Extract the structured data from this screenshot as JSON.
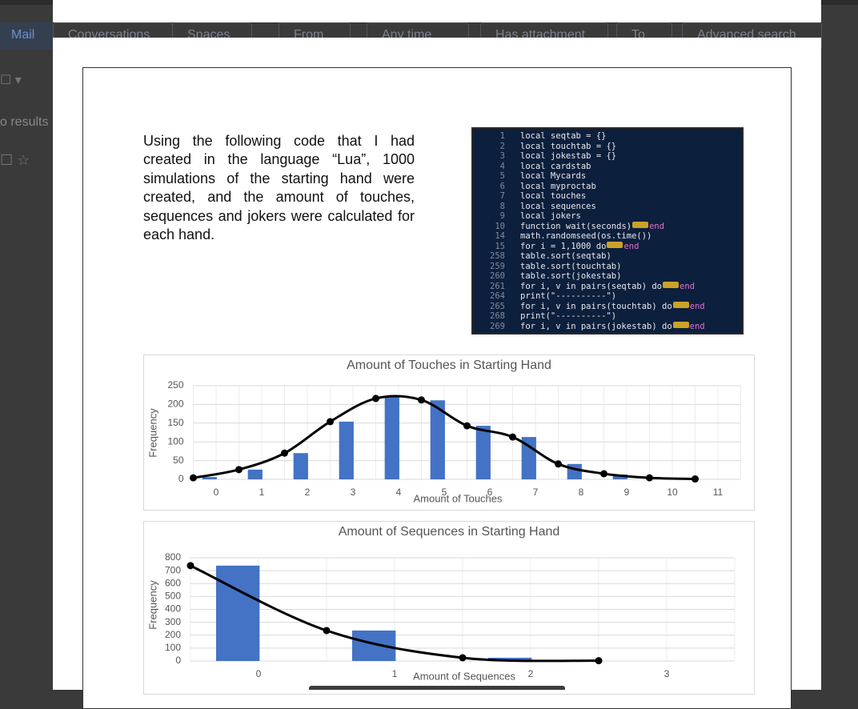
{
  "gmail": {
    "nav": "Mail",
    "chips": [
      "Conversations",
      "Spaces",
      "From",
      "Any time",
      "Has attachment",
      "To",
      "Advanced search"
    ],
    "results": "o results"
  },
  "document": {
    "paragraph": "Using the following code that I had created in the language “Lua”, 1000 simulations of the starting hand were created, and the amount of touches, sequences and jokers were calculated for each hand.",
    "code": {
      "lines": [
        {
          "n": "1",
          "code": "local seqtab = {}"
        },
        {
          "n": "2",
          "code": "local touchtab = {}"
        },
        {
          "n": "3",
          "code": "local jokestab = {}"
        },
        {
          "n": "4",
          "code": "local cardstab"
        },
        {
          "n": "5",
          "code": "local Mycards"
        },
        {
          "n": "6",
          "code": "local myproctab"
        },
        {
          "n": "7",
          "code": "local touches"
        },
        {
          "n": "8",
          "code": "local sequences"
        },
        {
          "n": "9",
          "code": "local jokers"
        },
        {
          "n": "10",
          "code": "function wait(seconds)",
          "tail": "end"
        },
        {
          "n": "14",
          "code": "math.randomseed(os.time())"
        },
        {
          "n": "15",
          "code": "for i = 1,1000 do",
          "tail": "end"
        },
        {
          "n": "258",
          "code": "table.sort(seqtab)"
        },
        {
          "n": "259",
          "code": "table.sort(touchtab)"
        },
        {
          "n": "260",
          "code": "table.sort(jokestab)"
        },
        {
          "n": "261",
          "code": "for i, v in pairs(seqtab) do",
          "tail": "end"
        },
        {
          "n": "264",
          "code": "print(\"----------\")"
        },
        {
          "n": "265",
          "code": "for i, v in pairs(touchtab) do",
          "tail": "end"
        },
        {
          "n": "268",
          "code": "print(\"----------\")"
        },
        {
          "n": "269",
          "code": "for i, v in pairs(jokestab) do",
          "tail": "end"
        }
      ]
    }
  },
  "chart_data": [
    {
      "type": "bar",
      "title": "Amount of Touches in Starting Hand",
      "x_label": "Amount of Touches",
      "y_label": "Frequency",
      "categories": [
        "0",
        "1",
        "2",
        "3",
        "4",
        "5",
        "6",
        "7",
        "8",
        "9",
        "10",
        "11"
      ],
      "series": [
        {
          "type": "bar",
          "color": "#4472c4",
          "values": [
            6,
            26,
            70,
            154,
            220,
            211,
            143,
            113,
            41,
            13,
            3,
            0
          ]
        },
        {
          "type": "line",
          "color": "#000000",
          "values": [
            4,
            26,
            70,
            154,
            216,
            212,
            143,
            113,
            41,
            15,
            4,
            1
          ]
        }
      ],
      "ylim": [
        0,
        250
      ],
      "yticks": [
        0,
        50,
        100,
        150,
        200,
        250
      ],
      "grid": true
    },
    {
      "type": "bar",
      "title": "Amount of Sequences in Starting Hand",
      "x_label": "Amount of Sequences",
      "y_label": "Frequency",
      "categories": [
        "0",
        "1",
        "2",
        "3"
      ],
      "series": [
        {
          "type": "bar",
          "color": "#4472c4",
          "values": [
            739,
            236,
            25,
            0
          ]
        },
        {
          "type": "line",
          "color": "#000000",
          "values": [
            739,
            236,
            25,
            2
          ]
        }
      ],
      "ylim": [
        0,
        800
      ],
      "yticks": [
        0,
        100,
        200,
        300,
        400,
        500,
        600,
        700,
        800
      ],
      "grid": true
    }
  ]
}
